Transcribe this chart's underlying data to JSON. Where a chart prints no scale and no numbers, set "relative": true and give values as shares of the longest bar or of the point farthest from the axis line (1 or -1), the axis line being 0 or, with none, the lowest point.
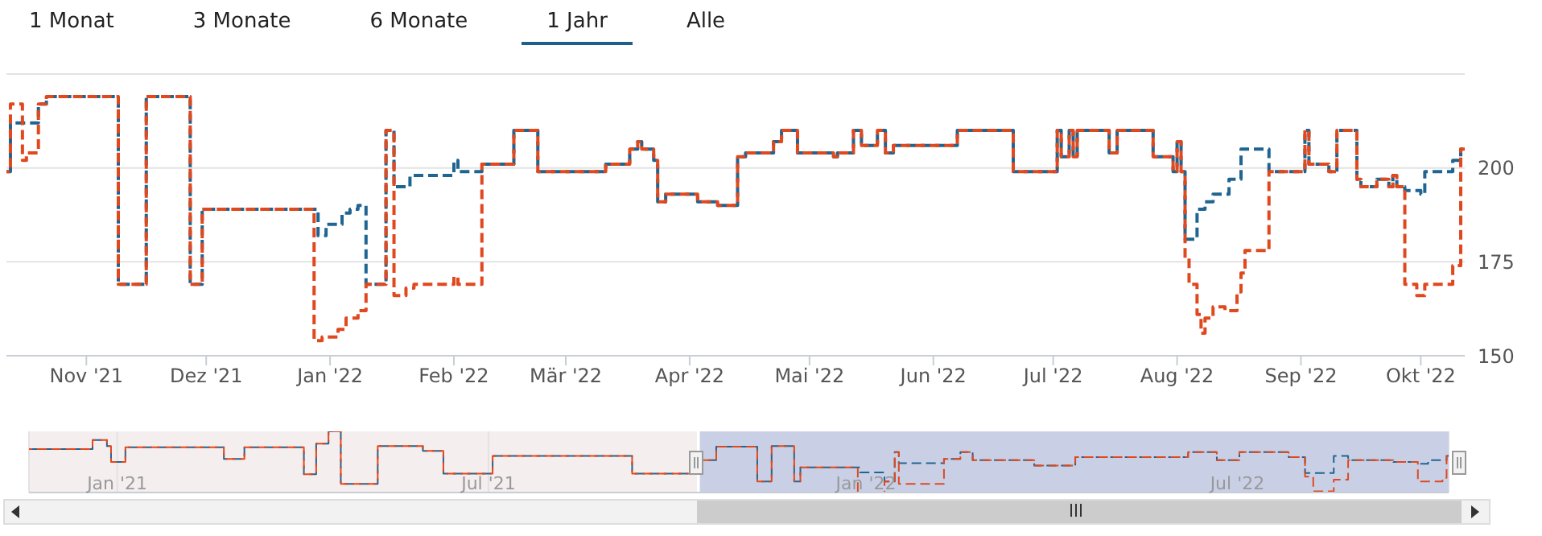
{
  "chart_data": [
    {
      "type": "step",
      "annotations": [
        "1 Monat",
        "3 Monate",
        "6 Monate",
        "1 Jahr",
        "Alle"
      ],
      "xlim": [
        "2021-10-12",
        "2022-10-12"
      ],
      "xticks": [
        {
          "value": "2021-11-01",
          "label": "Nov '21"
        },
        {
          "value": "2021-12-01",
          "label": "Dez '21"
        },
        {
          "value": "2022-01-01",
          "label": "Jan '22"
        },
        {
          "value": "2022-02-01",
          "label": "Feb '22"
        },
        {
          "value": "2022-03-01",
          "label": "Mär '22"
        },
        {
          "value": "2022-04-01",
          "label": "Apr '22"
        },
        {
          "value": "2022-05-01",
          "label": "Mai '22"
        },
        {
          "value": "2022-06-01",
          "label": "Jun '22"
        },
        {
          "value": "2022-07-01",
          "label": "Jul '22"
        },
        {
          "value": "2022-08-01",
          "label": "Aug '22"
        },
        {
          "value": "2022-09-01",
          "label": "Sep '22"
        },
        {
          "value": "2022-10-01",
          "label": "Okt '22"
        }
      ],
      "ylim": [
        150,
        225
      ],
      "yticks": [
        150,
        175,
        200,
        {
          "value": 225,
          "label": null
        }
      ],
      "grid": "y",
      "line_style": "dashed",
      "series": [
        {
          "color": "#1f6591",
          "x": [
            "2021-10-12",
            "2021-10-13",
            "2021-10-20",
            "2021-10-22",
            "2021-11-09",
            "2021-11-16",
            "2021-11-27",
            "2021-11-30",
            "2021-12-29",
            "2021-12-31",
            "2022-01-04",
            "2022-01-06",
            "2022-01-08",
            "2022-01-10",
            "2022-01-15",
            "2022-01-17",
            "2022-01-21",
            "2022-02-01",
            "2022-02-02",
            "2022-02-08",
            "2022-02-16",
            "2022-02-22",
            "2022-03-11",
            "2022-03-17",
            "2022-03-19",
            "2022-03-20",
            "2022-03-23",
            "2022-03-24",
            "2022-03-26",
            "2022-04-03",
            "2022-04-08",
            "2022-04-13",
            "2022-04-15",
            "2022-04-22",
            "2022-04-24",
            "2022-04-28",
            "2022-05-07",
            "2022-05-08",
            "2022-05-12",
            "2022-05-14",
            "2022-05-18",
            "2022-05-20",
            "2022-05-22",
            "2022-06-07",
            "2022-06-21",
            "2022-07-02",
            "2022-07-03",
            "2022-07-05",
            "2022-07-06",
            "2022-07-07",
            "2022-07-15",
            "2022-07-17",
            "2022-07-26",
            "2022-07-31",
            "2022-08-01",
            "2022-08-02",
            "2022-08-03",
            "2022-08-06",
            "2022-08-08",
            "2022-08-10",
            "2022-08-14",
            "2022-08-17",
            "2022-08-24",
            "2022-09-02",
            "2022-09-03",
            "2022-09-08",
            "2022-09-10",
            "2022-09-15",
            "2022-09-16",
            "2022-09-20",
            "2022-09-23",
            "2022-09-24",
            "2022-09-25",
            "2022-09-27",
            "2022-10-01",
            "2022-10-02",
            "2022-10-09",
            "2022-10-11",
            "2022-10-12"
          ],
          "values": [
            199,
            212,
            217,
            219,
            169,
            219,
            169,
            189,
            182,
            185,
            188,
            189,
            190,
            169,
            210,
            195,
            198,
            202,
            199,
            201,
            210,
            199,
            201,
            205,
            207,
            205,
            202,
            191,
            193,
            191,
            190,
            203,
            204,
            207,
            210,
            204,
            203,
            204,
            210,
            206,
            210,
            204,
            206,
            210,
            199,
            210,
            203,
            210,
            203,
            210,
            204,
            210,
            203,
            199,
            207,
            199,
            181,
            189,
            191,
            193,
            197,
            205,
            199,
            210,
            201,
            199,
            210,
            197,
            195,
            197,
            195,
            198,
            195,
            194,
            193,
            199,
            202,
            205,
            205
          ]
        },
        {
          "color": "#e0481e",
          "x": [
            "2021-10-12",
            "2021-10-13",
            "2021-10-16",
            "2021-10-17",
            "2021-10-20",
            "2021-10-22",
            "2021-11-09",
            "2021-11-16",
            "2021-11-27",
            "2021-11-30",
            "2021-12-28",
            "2021-12-30",
            "2022-01-03",
            "2022-01-05",
            "2022-01-08",
            "2022-01-10",
            "2022-01-15",
            "2022-01-17",
            "2022-01-20",
            "2022-01-22",
            "2022-02-01",
            "2022-02-02",
            "2022-02-08",
            "2022-02-16",
            "2022-02-22",
            "2022-03-11",
            "2022-03-17",
            "2022-03-19",
            "2022-03-20",
            "2022-03-23",
            "2022-03-24",
            "2022-03-26",
            "2022-04-03",
            "2022-04-08",
            "2022-04-13",
            "2022-04-15",
            "2022-04-22",
            "2022-04-24",
            "2022-04-28",
            "2022-05-07",
            "2022-05-08",
            "2022-05-12",
            "2022-05-14",
            "2022-05-18",
            "2022-05-20",
            "2022-05-22",
            "2022-06-07",
            "2022-06-21",
            "2022-07-02",
            "2022-07-03",
            "2022-07-05",
            "2022-07-06",
            "2022-07-07",
            "2022-07-15",
            "2022-07-17",
            "2022-07-26",
            "2022-07-31",
            "2022-08-01",
            "2022-08-02",
            "2022-08-03",
            "2022-08-04",
            "2022-08-06",
            "2022-08-07",
            "2022-08-08",
            "2022-08-10",
            "2022-08-13",
            "2022-08-16",
            "2022-08-17",
            "2022-08-18",
            "2022-08-24",
            "2022-09-02",
            "2022-09-03",
            "2022-09-08",
            "2022-09-10",
            "2022-09-15",
            "2022-09-16",
            "2022-09-20",
            "2022-09-23",
            "2022-09-24",
            "2022-09-25",
            "2022-09-27",
            "2022-09-30",
            "2022-10-02",
            "2022-10-09",
            "2022-10-11",
            "2022-10-12"
          ],
          "values": [
            199,
            217,
            202,
            204,
            217,
            219,
            169,
            219,
            169,
            189,
            154,
            155,
            157,
            160,
            162,
            169,
            210,
            166,
            168,
            169,
            171,
            169,
            201,
            210,
            199,
            201,
            205,
            207,
            205,
            202,
            191,
            193,
            191,
            190,
            203,
            204,
            207,
            210,
            204,
            203,
            204,
            210,
            206,
            210,
            204,
            206,
            210,
            199,
            210,
            203,
            210,
            203,
            210,
            204,
            210,
            203,
            199,
            207,
            199,
            176,
            169,
            161,
            156,
            160,
            163,
            162,
            167,
            172,
            178,
            199,
            210,
            201,
            199,
            210,
            197,
            195,
            197,
            195,
            198,
            195,
            169,
            166,
            169,
            174,
            205,
            205
          ]
        }
      ]
    },
    {
      "type": "step",
      "relative": true,
      "tick_labels": "x",
      "grid": "x",
      "line_style": "dashed",
      "xlim": [
        "2020-11-19",
        "2022-10-12"
      ],
      "xticks": [
        {
          "value": "2021-01-01",
          "label": "Jan '21"
        },
        {
          "value": "2021-07-01",
          "label": "Jul '21"
        },
        {
          "value": "2022-01-01",
          "label": "Jan '22"
        },
        {
          "value": "2022-07-01",
          "label": "Jul '22"
        }
      ],
      "bands": [
        {
          "axis": "x",
          "from": "2021-10-12",
          "to": "2022-10-12",
          "color": "#c9d0e6"
        }
      ],
      "series": [
        {
          "color": "#1f6591",
          "x": [
            "2020-11-19",
            "2020-12-20",
            "2020-12-27",
            "2020-12-29",
            "2021-01-05",
            "2021-02-22",
            "2021-03-04",
            "2021-04-02",
            "2021-04-08",
            "2021-04-14",
            "2021-04-20",
            "2021-05-08",
            "2021-05-30",
            "2021-06-09",
            "2021-07-03",
            "2021-09-09",
            "2021-10-12",
            "2021-10-20",
            "2021-11-09",
            "2021-11-16",
            "2021-11-27",
            "2021-11-30",
            "2021-12-29",
            "2022-01-10",
            "2022-01-15",
            "2022-01-17",
            "2022-02-08",
            "2022-02-16",
            "2022-02-22",
            "2022-03-24",
            "2022-04-13",
            "2022-06-07",
            "2022-06-21",
            "2022-07-02",
            "2022-07-26",
            "2022-08-03",
            "2022-08-17",
            "2022-08-24",
            "2022-09-15",
            "2022-09-27",
            "2022-10-02",
            "2022-10-11",
            "2022-10-12"
          ],
          "values": [
            0.71,
            0.86,
            0.76,
            0.5,
            0.74,
            0.55,
            0.74,
            0.3,
            0.8,
            1,
            0.14,
            0.76,
            0.68,
            0.31,
            0.6,
            0.31,
            0.53,
            0.75,
            0.18,
            0.76,
            0.18,
            0.41,
            0.33,
            0.18,
            0.66,
            0.48,
            0.55,
            0.66,
            0.53,
            0.44,
            0.58,
            0.66,
            0.53,
            0.66,
            0.58,
            0.32,
            0.6,
            0.53,
            0.5,
            0.47,
            0.53,
            0.6,
            0.6
          ]
        },
        {
          "color": "#e0481e",
          "x": [
            "2020-11-19",
            "2020-12-20",
            "2020-12-27",
            "2020-12-29",
            "2021-01-05",
            "2021-02-22",
            "2021-03-04",
            "2021-04-02",
            "2021-04-08",
            "2021-04-14",
            "2021-04-20",
            "2021-05-08",
            "2021-05-30",
            "2021-06-09",
            "2021-07-03",
            "2021-09-09",
            "2021-10-12",
            "2021-10-20",
            "2021-11-09",
            "2021-11-16",
            "2021-11-27",
            "2021-11-30",
            "2021-12-28",
            "2022-01-10",
            "2022-01-15",
            "2022-01-17",
            "2022-02-08",
            "2022-02-16",
            "2022-02-22",
            "2022-03-24",
            "2022-04-13",
            "2022-06-07",
            "2022-06-21",
            "2022-07-02",
            "2022-07-26",
            "2022-08-03",
            "2022-08-07",
            "2022-08-17",
            "2022-08-24",
            "2022-09-15",
            "2022-09-27",
            "2022-10-09",
            "2022-10-11",
            "2022-10-12"
          ],
          "values": [
            0.71,
            0.86,
            0.76,
            0.5,
            0.74,
            0.55,
            0.74,
            0.3,
            0.8,
            1,
            0.14,
            0.76,
            0.68,
            0.31,
            0.6,
            0.31,
            0.53,
            0.75,
            0.18,
            0.76,
            0.18,
            0.41,
            0,
            0.18,
            0.66,
            0.14,
            0.55,
            0.66,
            0.53,
            0.44,
            0.58,
            0.66,
            0.53,
            0.66,
            0.58,
            0.26,
            0.02,
            0.21,
            0.53,
            0.5,
            0.18,
            0.24,
            0.6,
            0.6
          ]
        }
      ]
    }
  ]
}
